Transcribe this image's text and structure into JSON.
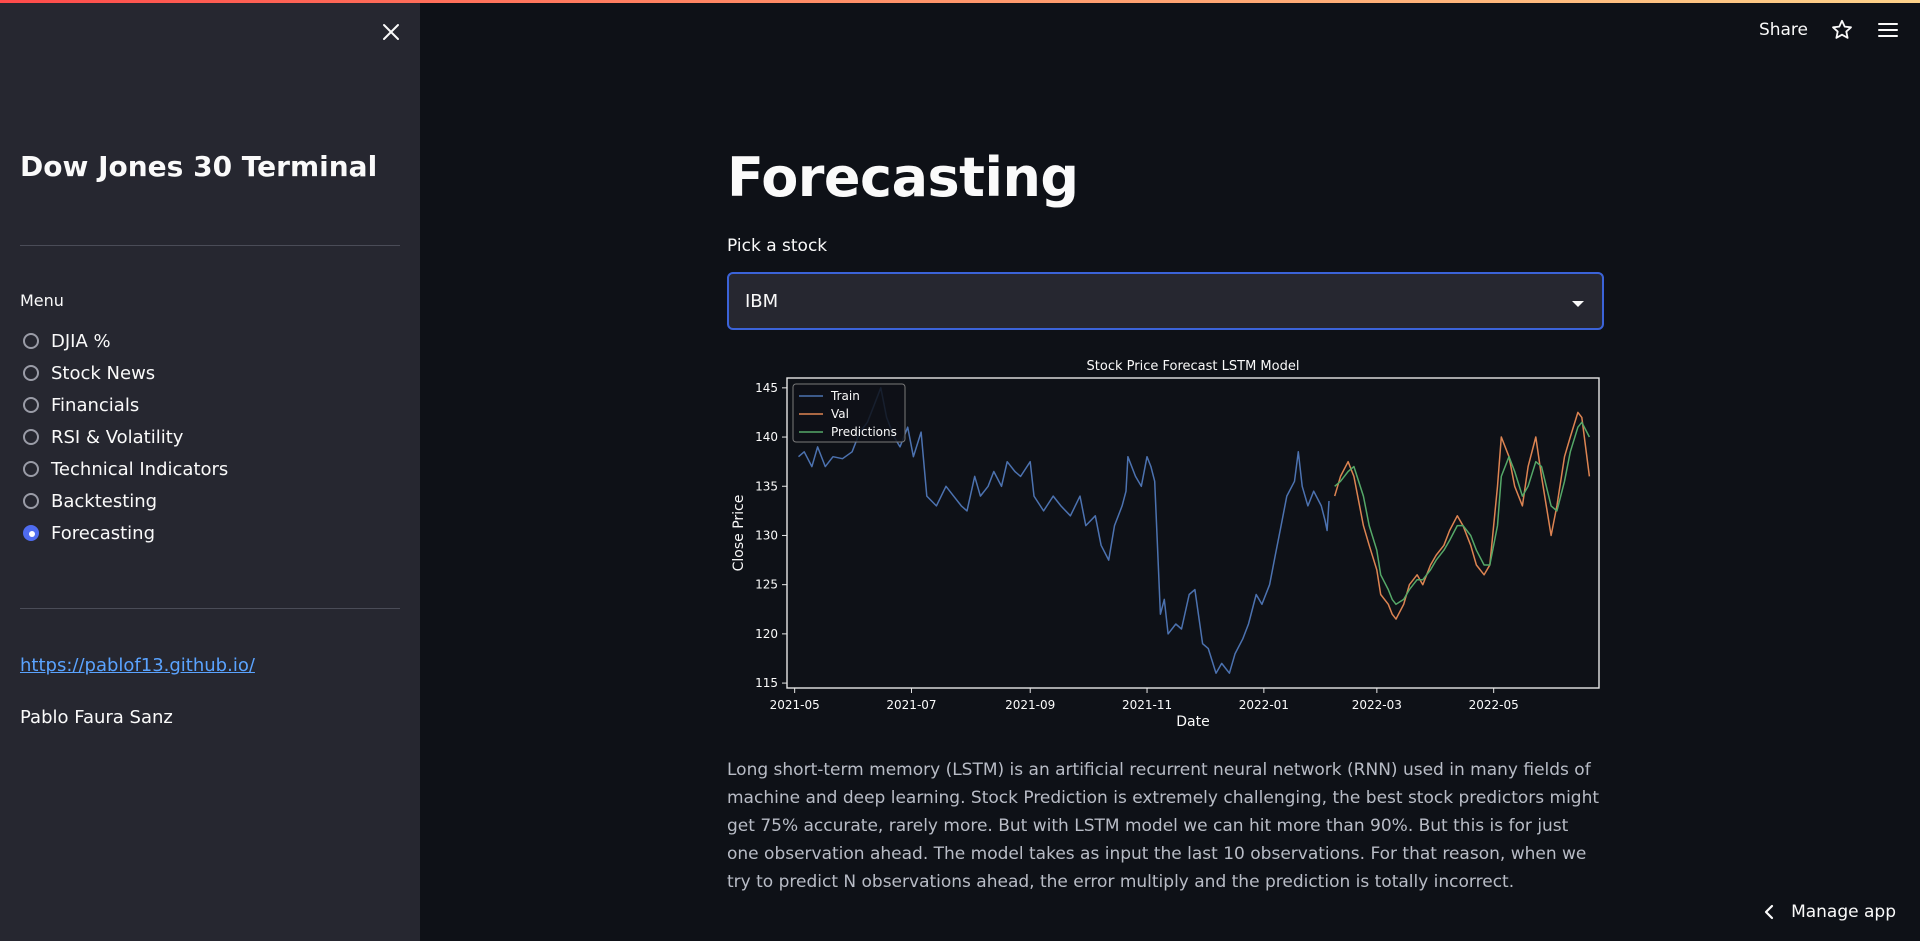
{
  "sidebar": {
    "title": "Dow Jones 30 Terminal",
    "menu_label": "Menu",
    "items": [
      {
        "label": "DJIA %",
        "selected": false
      },
      {
        "label": "Stock News",
        "selected": false
      },
      {
        "label": "Financials",
        "selected": false
      },
      {
        "label": "RSI & Volatility",
        "selected": false
      },
      {
        "label": "Technical Indicators",
        "selected": false
      },
      {
        "label": "Backtesting",
        "selected": false
      },
      {
        "label": "Forecasting",
        "selected": true
      }
    ],
    "link": "https://pablof13.github.io/",
    "author": "Pablo Faura Sanz"
  },
  "header": {
    "share_label": "Share",
    "icons": [
      "star-icon",
      "hamburger-menu-icon"
    ]
  },
  "main": {
    "title": "Forecasting",
    "pick_label": "Pick a stock",
    "selected_stock": "IBM",
    "description": "Long short-term memory (LSTM) is an artificial recurrent neural network (RNN) used in many fields of machine and deep learning. Stock Prediction is extremely challenging, the best stock predictors might get 75% accurate, rarely more. But with LSTM model we can hit more than 90%. But this is for just one observation ahead. The model takes as input the last 10 observations. For that reason, when we try to predict N observations ahead, the error multiply and the prediction is totally incorrect."
  },
  "footer": {
    "manage_label": "Manage app"
  },
  "colors": {
    "accent": "#4f6cf0",
    "train": "#4c72b0",
    "val": "#dd8452",
    "predictions": "#55a868"
  },
  "chart_data": {
    "type": "line",
    "title": "Stock Price Forecast LSTM Model",
    "xlabel": "Date",
    "ylabel": "Close Price",
    "ylim": [
      114.5,
      146
    ],
    "xlim": [
      "2021-04-27",
      "2022-06-25"
    ],
    "x_ticks": [
      "2021-05",
      "2021-07",
      "2021-09",
      "2021-11",
      "2022-01",
      "2022-03",
      "2022-05"
    ],
    "y_ticks": [
      115,
      120,
      125,
      130,
      135,
      140,
      145
    ],
    "legend_position": "top-left",
    "series": [
      {
        "name": "Train",
        "color": "#4c72b0",
        "points": [
          [
            "2021-05-03",
            138
          ],
          [
            "2021-05-06",
            138.5
          ],
          [
            "2021-05-10",
            137
          ],
          [
            "2021-05-13",
            139
          ],
          [
            "2021-05-17",
            137
          ],
          [
            "2021-05-21",
            138
          ],
          [
            "2021-05-26",
            137.8
          ],
          [
            "2021-05-31",
            138.5
          ],
          [
            "2021-06-04",
            140.5
          ],
          [
            "2021-06-08",
            141.5
          ],
          [
            "2021-06-11",
            143
          ],
          [
            "2021-06-15",
            145
          ],
          [
            "2021-06-18",
            142
          ],
          [
            "2021-06-22",
            140
          ],
          [
            "2021-06-25",
            139
          ],
          [
            "2021-06-29",
            141
          ],
          [
            "2021-07-02",
            138
          ],
          [
            "2021-07-06",
            140.5
          ],
          [
            "2021-07-09",
            134
          ],
          [
            "2021-07-14",
            133
          ],
          [
            "2021-07-19",
            135
          ],
          [
            "2021-07-23",
            134
          ],
          [
            "2021-07-27",
            133
          ],
          [
            "2021-07-30",
            132.5
          ],
          [
            "2021-08-03",
            136
          ],
          [
            "2021-08-06",
            134
          ],
          [
            "2021-08-10",
            135
          ],
          [
            "2021-08-13",
            136.5
          ],
          [
            "2021-08-17",
            135
          ],
          [
            "2021-08-20",
            137.5
          ],
          [
            "2021-08-24",
            136.5
          ],
          [
            "2021-08-27",
            136
          ],
          [
            "2021-09-01",
            137.5
          ],
          [
            "2021-09-03",
            134
          ],
          [
            "2021-09-08",
            132.5
          ],
          [
            "2021-09-13",
            134
          ],
          [
            "2021-09-17",
            133
          ],
          [
            "2021-09-22",
            132
          ],
          [
            "2021-09-27",
            134
          ],
          [
            "2021-09-30",
            131
          ],
          [
            "2021-10-05",
            132
          ],
          [
            "2021-10-08",
            129
          ],
          [
            "2021-10-12",
            127.5
          ],
          [
            "2021-10-15",
            131
          ],
          [
            "2021-10-19",
            133
          ],
          [
            "2021-10-21",
            134.5
          ],
          [
            "2021-10-22",
            138
          ],
          [
            "2021-10-26",
            136
          ],
          [
            "2021-10-29",
            135
          ],
          [
            "2021-11-01",
            138
          ],
          [
            "2021-11-03",
            137
          ],
          [
            "2021-11-05",
            135.5
          ],
          [
            "2021-11-08",
            122
          ],
          [
            "2021-11-10",
            123.5
          ],
          [
            "2021-11-12",
            120
          ],
          [
            "2021-11-16",
            121
          ],
          [
            "2021-11-19",
            120.5
          ],
          [
            "2021-11-23",
            124
          ],
          [
            "2021-11-26",
            124.5
          ],
          [
            "2021-11-30",
            119
          ],
          [
            "2021-12-03",
            118.5
          ],
          [
            "2021-12-07",
            116
          ],
          [
            "2021-12-10",
            117
          ],
          [
            "2021-12-14",
            116
          ],
          [
            "2021-12-17",
            118
          ],
          [
            "2021-12-21",
            119.5
          ],
          [
            "2021-12-24",
            121
          ],
          [
            "2021-12-28",
            124
          ],
          [
            "2021-12-31",
            123
          ],
          [
            "2022-01-04",
            125
          ],
          [
            "2022-01-07",
            128
          ],
          [
            "2022-01-10",
            131
          ],
          [
            "2022-01-13",
            134
          ],
          [
            "2022-01-17",
            135.5
          ],
          [
            "2022-01-19",
            138.5
          ],
          [
            "2022-01-21",
            135
          ],
          [
            "2022-01-24",
            133
          ],
          [
            "2022-01-27",
            134.5
          ],
          [
            "2022-01-31",
            133
          ],
          [
            "2022-02-02",
            131.5
          ],
          [
            "2022-02-03",
            130.5
          ],
          [
            "2022-02-04",
            133.5
          ]
        ]
      },
      {
        "name": "Val",
        "color": "#dd8452",
        "points": [
          [
            "2022-02-07",
            134
          ],
          [
            "2022-02-10",
            136
          ],
          [
            "2022-02-14",
            137.5
          ],
          [
            "2022-02-17",
            136
          ],
          [
            "2022-02-22",
            131
          ],
          [
            "2022-02-25",
            129
          ],
          [
            "2022-03-01",
            126.5
          ],
          [
            "2022-03-03",
            124
          ],
          [
            "2022-03-07",
            123
          ],
          [
            "2022-03-09",
            122
          ],
          [
            "2022-03-11",
            121.5
          ],
          [
            "2022-03-15",
            123
          ],
          [
            "2022-03-18",
            125
          ],
          [
            "2022-03-22",
            126
          ],
          [
            "2022-03-25",
            125
          ],
          [
            "2022-03-29",
            127
          ],
          [
            "2022-04-01",
            128
          ],
          [
            "2022-04-05",
            129
          ],
          [
            "2022-04-08",
            130.5
          ],
          [
            "2022-04-12",
            132
          ],
          [
            "2022-04-15",
            131
          ],
          [
            "2022-04-19",
            129
          ],
          [
            "2022-04-22",
            127
          ],
          [
            "2022-04-26",
            126
          ],
          [
            "2022-04-29",
            127
          ],
          [
            "2022-05-03",
            135
          ],
          [
            "2022-05-05",
            140
          ],
          [
            "2022-05-09",
            138
          ],
          [
            "2022-05-12",
            135
          ],
          [
            "2022-05-16",
            133
          ],
          [
            "2022-05-19",
            137
          ],
          [
            "2022-05-23",
            140
          ],
          [
            "2022-05-26",
            136
          ],
          [
            "2022-05-31",
            130
          ],
          [
            "2022-06-03",
            133
          ],
          [
            "2022-06-07",
            138
          ],
          [
            "2022-06-10",
            140
          ],
          [
            "2022-06-14",
            142.5
          ],
          [
            "2022-06-16",
            142
          ],
          [
            "2022-06-20",
            136
          ]
        ]
      },
      {
        "name": "Predictions",
        "color": "#55a868",
        "points": [
          [
            "2022-02-07",
            135
          ],
          [
            "2022-02-10",
            135.5
          ],
          [
            "2022-02-14",
            136.5
          ],
          [
            "2022-02-17",
            137
          ],
          [
            "2022-02-22",
            134
          ],
          [
            "2022-02-25",
            131
          ],
          [
            "2022-03-01",
            128.5
          ],
          [
            "2022-03-03",
            126
          ],
          [
            "2022-03-07",
            124.5
          ],
          [
            "2022-03-09",
            123.5
          ],
          [
            "2022-03-11",
            123
          ],
          [
            "2022-03-15",
            123.5
          ],
          [
            "2022-03-18",
            124.5
          ],
          [
            "2022-03-22",
            125.5
          ],
          [
            "2022-03-25",
            125.5
          ],
          [
            "2022-03-29",
            126.5
          ],
          [
            "2022-04-01",
            127.5
          ],
          [
            "2022-04-05",
            128.5
          ],
          [
            "2022-04-08",
            129.5
          ],
          [
            "2022-04-12",
            131
          ],
          [
            "2022-04-15",
            131
          ],
          [
            "2022-04-19",
            130
          ],
          [
            "2022-04-22",
            128.5
          ],
          [
            "2022-04-26",
            127
          ],
          [
            "2022-04-29",
            127
          ],
          [
            "2022-05-03",
            131
          ],
          [
            "2022-05-05",
            136
          ],
          [
            "2022-05-09",
            138
          ],
          [
            "2022-05-12",
            136.5
          ],
          [
            "2022-05-16",
            134
          ],
          [
            "2022-05-19",
            135
          ],
          [
            "2022-05-23",
            137.5
          ],
          [
            "2022-05-26",
            137
          ],
          [
            "2022-05-31",
            133
          ],
          [
            "2022-06-03",
            132.5
          ],
          [
            "2022-06-07",
            135.5
          ],
          [
            "2022-06-10",
            138.5
          ],
          [
            "2022-06-14",
            141
          ],
          [
            "2022-06-16",
            141.5
          ],
          [
            "2022-06-20",
            140
          ]
        ]
      }
    ]
  }
}
